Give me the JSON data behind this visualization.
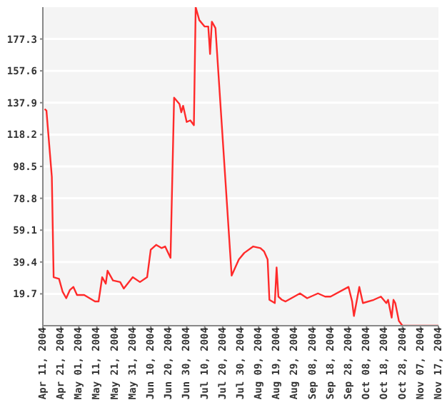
{
  "chart_data": {
    "type": "line",
    "x": [
      "2004-04-12",
      "2004-04-13",
      "2004-04-16",
      "2004-04-17",
      "2004-04-20",
      "2004-04-22",
      "2004-04-24",
      "2004-04-26",
      "2004-04-28",
      "2004-04-30",
      "2004-05-04",
      "2004-05-10",
      "2004-05-12",
      "2004-05-14",
      "2004-05-16",
      "2004-05-17",
      "2004-05-20",
      "2004-05-24",
      "2004-05-26",
      "2004-05-31",
      "2004-06-04",
      "2004-06-08",
      "2004-06-10",
      "2004-06-13",
      "2004-06-16",
      "2004-06-18",
      "2004-06-21",
      "2004-06-23",
      "2004-06-26",
      "2004-06-27",
      "2004-06-28",
      "2004-06-30",
      "2004-07-02",
      "2004-07-04",
      "2004-07-05",
      "2004-07-07",
      "2004-07-10",
      "2004-07-12",
      "2004-07-13",
      "2004-07-14",
      "2004-07-16",
      "2004-07-25",
      "2004-07-29",
      "2004-08-01",
      "2004-08-06",
      "2004-08-10",
      "2004-08-12",
      "2004-08-14",
      "2004-08-15",
      "2004-08-18",
      "2004-08-19",
      "2004-08-20",
      "2004-08-22",
      "2004-08-24",
      "2004-09-01",
      "2004-09-05",
      "2004-09-11",
      "2004-09-15",
      "2004-09-18",
      "2004-09-28",
      "2004-09-30",
      "2004-10-01",
      "2004-10-04",
      "2004-10-06",
      "2004-10-12",
      "2004-10-16",
      "2004-10-19",
      "2004-10-20",
      "2004-10-22",
      "2004-10-23",
      "2004-10-24",
      "2004-10-26",
      "2004-10-28",
      "2004-11-14",
      "2004-11-17"
    ],
    "series": [
      {
        "color": "#ff2a2a",
        "values": [
          134,
          133,
          92,
          30,
          29,
          21,
          17,
          22,
          24,
          19,
          19,
          15,
          15,
          30,
          26,
          34,
          28,
          27,
          23,
          30,
          27,
          30,
          47,
          50,
          48,
          49,
          42,
          141,
          137,
          132,
          136,
          126,
          127,
          124,
          197,
          189,
          185,
          185,
          168,
          188,
          184,
          31,
          41,
          45,
          49,
          48,
          46,
          41,
          16,
          14,
          36,
          18,
          16,
          15,
          20,
          17,
          20,
          18,
          18,
          24,
          15,
          6,
          24,
          14,
          16,
          18,
          14,
          16,
          5,
          16,
          14,
          3,
          0,
          0,
          0
        ]
      }
    ],
    "ylim": [
      0,
      197
    ],
    "yticks": [
      19.7,
      39.4,
      59.1,
      78.8,
      98.5,
      118.2,
      137.9,
      157.6,
      177.3
    ],
    "xlim": [
      "2004-04-11",
      "2004-11-17"
    ],
    "xticks": [
      {
        "value": "2004-04-11",
        "label": "Apr 11, 2004"
      },
      {
        "value": "2004-04-21",
        "label": "Apr 21, 2004"
      },
      {
        "value": "2004-05-01",
        "label": "May 01, 2004"
      },
      {
        "value": "2004-05-11",
        "label": "May 11, 2004"
      },
      {
        "value": "2004-05-21",
        "label": "May 21, 2004"
      },
      {
        "value": "2004-05-31",
        "label": "May 31, 2004"
      },
      {
        "value": "2004-06-10",
        "label": "Jun 10, 2004"
      },
      {
        "value": "2004-06-20",
        "label": "Jun 20, 2004"
      },
      {
        "value": "2004-06-30",
        "label": "Jun 30, 2004"
      },
      {
        "value": "2004-07-10",
        "label": "Jul 10, 2004"
      },
      {
        "value": "2004-07-20",
        "label": "Jul 20, 2004"
      },
      {
        "value": "2004-07-30",
        "label": "Jul 30, 2004"
      },
      {
        "value": "2004-08-09",
        "label": "Aug 09, 2004"
      },
      {
        "value": "2004-08-19",
        "label": "Aug 19, 2004"
      },
      {
        "value": "2004-08-29",
        "label": "Aug 29, 2004"
      },
      {
        "value": "2004-09-08",
        "label": "Sep 08, 2004"
      },
      {
        "value": "2004-09-18",
        "label": "Sep 18, 2004"
      },
      {
        "value": "2004-09-28",
        "label": "Sep 28, 2004"
      },
      {
        "value": "2004-10-08",
        "label": "Oct 08, 2004"
      },
      {
        "value": "2004-10-18",
        "label": "Oct 18, 2004"
      },
      {
        "value": "2004-10-28",
        "label": "Oct 28, 2004"
      },
      {
        "value": "2004-11-07",
        "label": "Nov 07, 2004"
      },
      {
        "value": "2004-11-17",
        "label": "Nov 17, 2004"
      }
    ],
    "grid": "y",
    "marker": "none",
    "line_style": "solid"
  }
}
